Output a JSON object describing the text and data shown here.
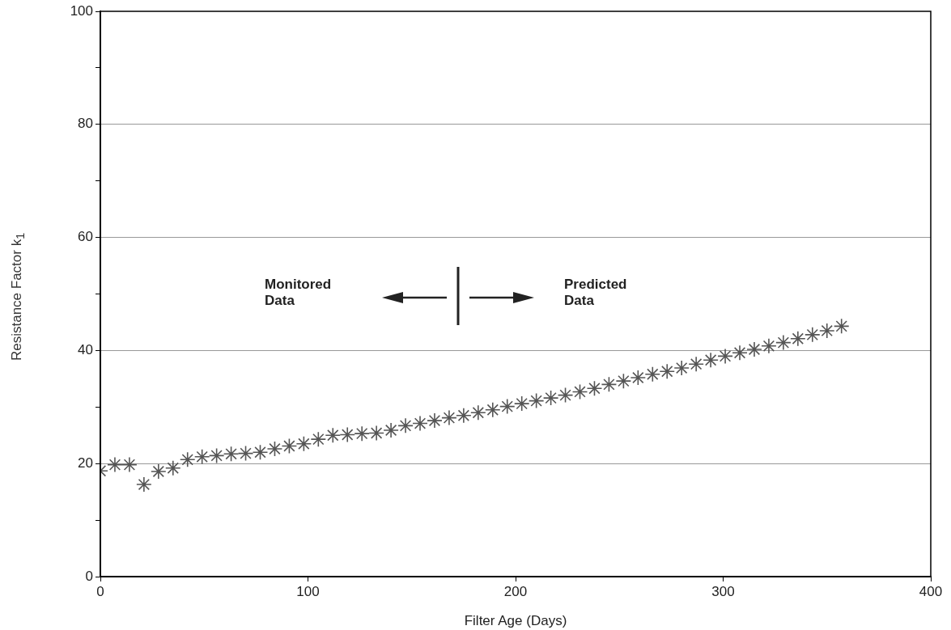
{
  "chart_data": {
    "type": "scatter",
    "xlabel": "Filter Age (Days)",
    "ylabel": "Resistance Factor k$_{1}$",
    "annotations": [
      "Monitored Data",
      "Predicted Data"
    ],
    "x": [
      0,
      7,
      14,
      21,
      28,
      35,
      42,
      49,
      56,
      63,
      70,
      77,
      84,
      91,
      98,
      105,
      112,
      119,
      126,
      133,
      140,
      147,
      154,
      161,
      168,
      175,
      182,
      189,
      196,
      203,
      210,
      217,
      224,
      231,
      238,
      245,
      252,
      259,
      266,
      273,
      280,
      287,
      294,
      301,
      308,
      315,
      322,
      329,
      336,
      343,
      350,
      357
    ],
    "series": [
      {
        "color": "#555555",
        "values": [
          18.7,
          19.8,
          19.8,
          16.3,
          18.6,
          19.2,
          20.7,
          21.2,
          21.4,
          21.7,
          21.8,
          22.0,
          22.6,
          23.1,
          23.5,
          24.3,
          25.0,
          25.1,
          25.3,
          25.4,
          25.9,
          26.7,
          27.1,
          27.6,
          28.1,
          28.5,
          29.0,
          29.5,
          30.1,
          30.6,
          31.1,
          31.6,
          32.1,
          32.7,
          33.3,
          34.0,
          34.6,
          35.2,
          35.8,
          36.3,
          36.9,
          37.6,
          38.3,
          39.0,
          39.6,
          40.2,
          40.8,
          41.4,
          42.1,
          42.8,
          43.5,
          44.3
        ]
      }
    ],
    "xlim": [
      0,
      400
    ],
    "xticks": [
      0,
      100,
      200,
      300,
      400
    ],
    "ylim": [
      0,
      100
    ],
    "yticks": [
      0,
      {
        "value": 10,
        "label": null
      },
      20,
      {
        "value": 30,
        "label": null
      },
      40,
      {
        "value": 50,
        "label": null
      },
      60,
      {
        "value": 70,
        "label": null
      },
      80,
      {
        "value": 90,
        "label": null
      },
      100
    ],
    "grid": "y",
    "marker": "cross",
    "legend": false
  }
}
